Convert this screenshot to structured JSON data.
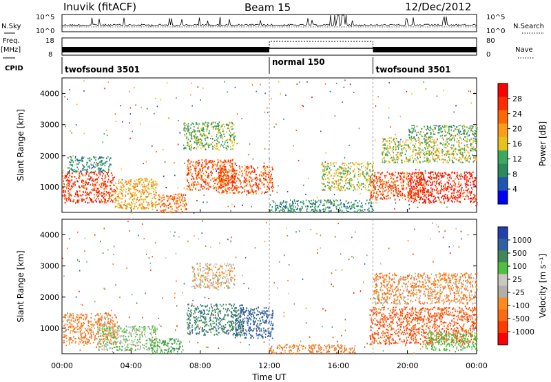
{
  "header": {
    "station": "Inuvik (fitACF)",
    "beam": "Beam 15",
    "date": "12/Dec/2012"
  },
  "strip": {
    "nsky_label": "N.Sky",
    "nsky_ticks": [
      "10^5",
      "10^0"
    ],
    "nsearch_label": "N.Search",
    "freq_label_top": "Freq.",
    "freq_label_bottom": "[MHz]",
    "freq_ticks": [
      "18",
      "8"
    ],
    "nave_ticks": [
      "80",
      "0"
    ],
    "nave_label": "Nave",
    "cpid_label": "CPID"
  },
  "cpid_segments": [
    {
      "label": "twofsound 3501",
      "start_hour": 0,
      "end_hour": 12
    },
    {
      "label": "normal 150",
      "start_hour": 12,
      "end_hour": 18
    },
    {
      "label": "twofsound 3501",
      "start_hour": 18,
      "end_hour": 24
    }
  ],
  "colors": {
    "power_scale": [
      "#0000ff",
      "#1f55b4",
      "#2b8a5c",
      "#3ca860",
      "#e6c21a",
      "#ff9c1a",
      "#ff6a00",
      "#ff2a00",
      "#ff0000"
    ],
    "velocity_scale": [
      "#2040b0",
      "#3060a0",
      "#408858",
      "#50c040",
      "#c8c8c0",
      "#b0b0a8",
      "#ff8c1a",
      "#ff6a10",
      "#ff3a00",
      "#ff0000"
    ]
  },
  "chart_data": [
    {
      "type": "heatmap",
      "panel": "power",
      "ylabel": "Slant Range [km]",
      "ylim": [
        180,
        4500
      ],
      "yticks": [
        "1000",
        "2000",
        "3000",
        "4000"
      ],
      "xlim": [
        0,
        24
      ],
      "colorbar": {
        "label": "Power [dB]",
        "ticks": [
          "28",
          "24",
          "20",
          "16",
          "12",
          "8",
          "4"
        ],
        "range": [
          0,
          30
        ]
      },
      "regions": [
        {
          "t0": 0.0,
          "t1": 3.0,
          "r0": 500,
          "r1": 1500,
          "level": 26
        },
        {
          "t0": 0.3,
          "t1": 2.8,
          "r0": 1500,
          "r1": 2000,
          "level": 8
        },
        {
          "t0": 3.0,
          "t1": 5.5,
          "r0": 300,
          "r1": 1300,
          "level": 18
        },
        {
          "t0": 5.5,
          "t1": 7.2,
          "r0": 200,
          "r1": 800,
          "level": 22
        },
        {
          "t0": 7.2,
          "t1": 10.0,
          "r0": 900,
          "r1": 1900,
          "level": 24
        },
        {
          "t0": 9.0,
          "t1": 12.2,
          "r0": 800,
          "r1": 1700,
          "level": 24
        },
        {
          "t0": 7.0,
          "t1": 10.0,
          "r0": 2200,
          "r1": 3100,
          "level": 12
        },
        {
          "t0": 12.0,
          "t1": 18.0,
          "r0": 200,
          "r1": 600,
          "level": 8
        },
        {
          "t0": 15.0,
          "t1": 18.0,
          "r0": 900,
          "r1": 1800,
          "level": 14
        },
        {
          "t0": 17.8,
          "t1": 21.0,
          "r0": 600,
          "r1": 1500,
          "level": 24
        },
        {
          "t0": 20.0,
          "t1": 24.0,
          "r0": 500,
          "r1": 1500,
          "level": 28
        },
        {
          "t0": 18.5,
          "t1": 24.0,
          "r0": 1800,
          "r1": 2600,
          "level": 14
        },
        {
          "t0": 20.0,
          "t1": 24.0,
          "r0": 2600,
          "r1": 3000,
          "level": 10
        }
      ]
    },
    {
      "type": "heatmap",
      "panel": "velocity",
      "ylabel": "Slant Range [km]",
      "ylim": [
        180,
        4500
      ],
      "yticks": [
        "1000",
        "2000",
        "3000",
        "4000"
      ],
      "xlim": [
        0,
        24
      ],
      "xticks": [
        "00:00",
        "04:00",
        "08:00",
        "12:00",
        "16:00",
        "20:00",
        "00:00"
      ],
      "xlabel": "Time UT",
      "colorbar": {
        "label": "Velocity [m s⁻¹]",
        "ticks": [
          "1000",
          "500",
          "100",
          "25",
          "-25",
          "-100",
          "-500",
          "-1000"
        ],
        "range": [
          -1000,
          1000
        ]
      },
      "regions": [
        {
          "t0": 0.0,
          "t1": 3.2,
          "r0": 500,
          "r1": 1500,
          "level": -100
        },
        {
          "t0": 2.0,
          "t1": 5.5,
          "r0": 300,
          "r1": 1100,
          "level": 100
        },
        {
          "t0": 5.0,
          "t1": 7.0,
          "r0": 200,
          "r1": 700,
          "level": 300
        },
        {
          "t0": 7.2,
          "t1": 10.5,
          "r0": 800,
          "r1": 1800,
          "level": 450
        },
        {
          "t0": 10.0,
          "t1": 12.2,
          "r0": 700,
          "r1": 1700,
          "level": 600
        },
        {
          "t0": 7.5,
          "t1": 10.0,
          "r0": 2300,
          "r1": 3100,
          "level": 0
        },
        {
          "t0": 12.0,
          "t1": 17.0,
          "r0": 200,
          "r1": 500,
          "level": -100
        },
        {
          "t0": 17.8,
          "t1": 24.0,
          "r0": 500,
          "r1": 1700,
          "level": -300
        },
        {
          "t0": 18.0,
          "t1": 24.0,
          "r0": 1800,
          "r1": 2800,
          "level": -80
        },
        {
          "t0": 21.0,
          "t1": 24.0,
          "r0": 300,
          "r1": 900,
          "level": 200
        }
      ]
    }
  ]
}
